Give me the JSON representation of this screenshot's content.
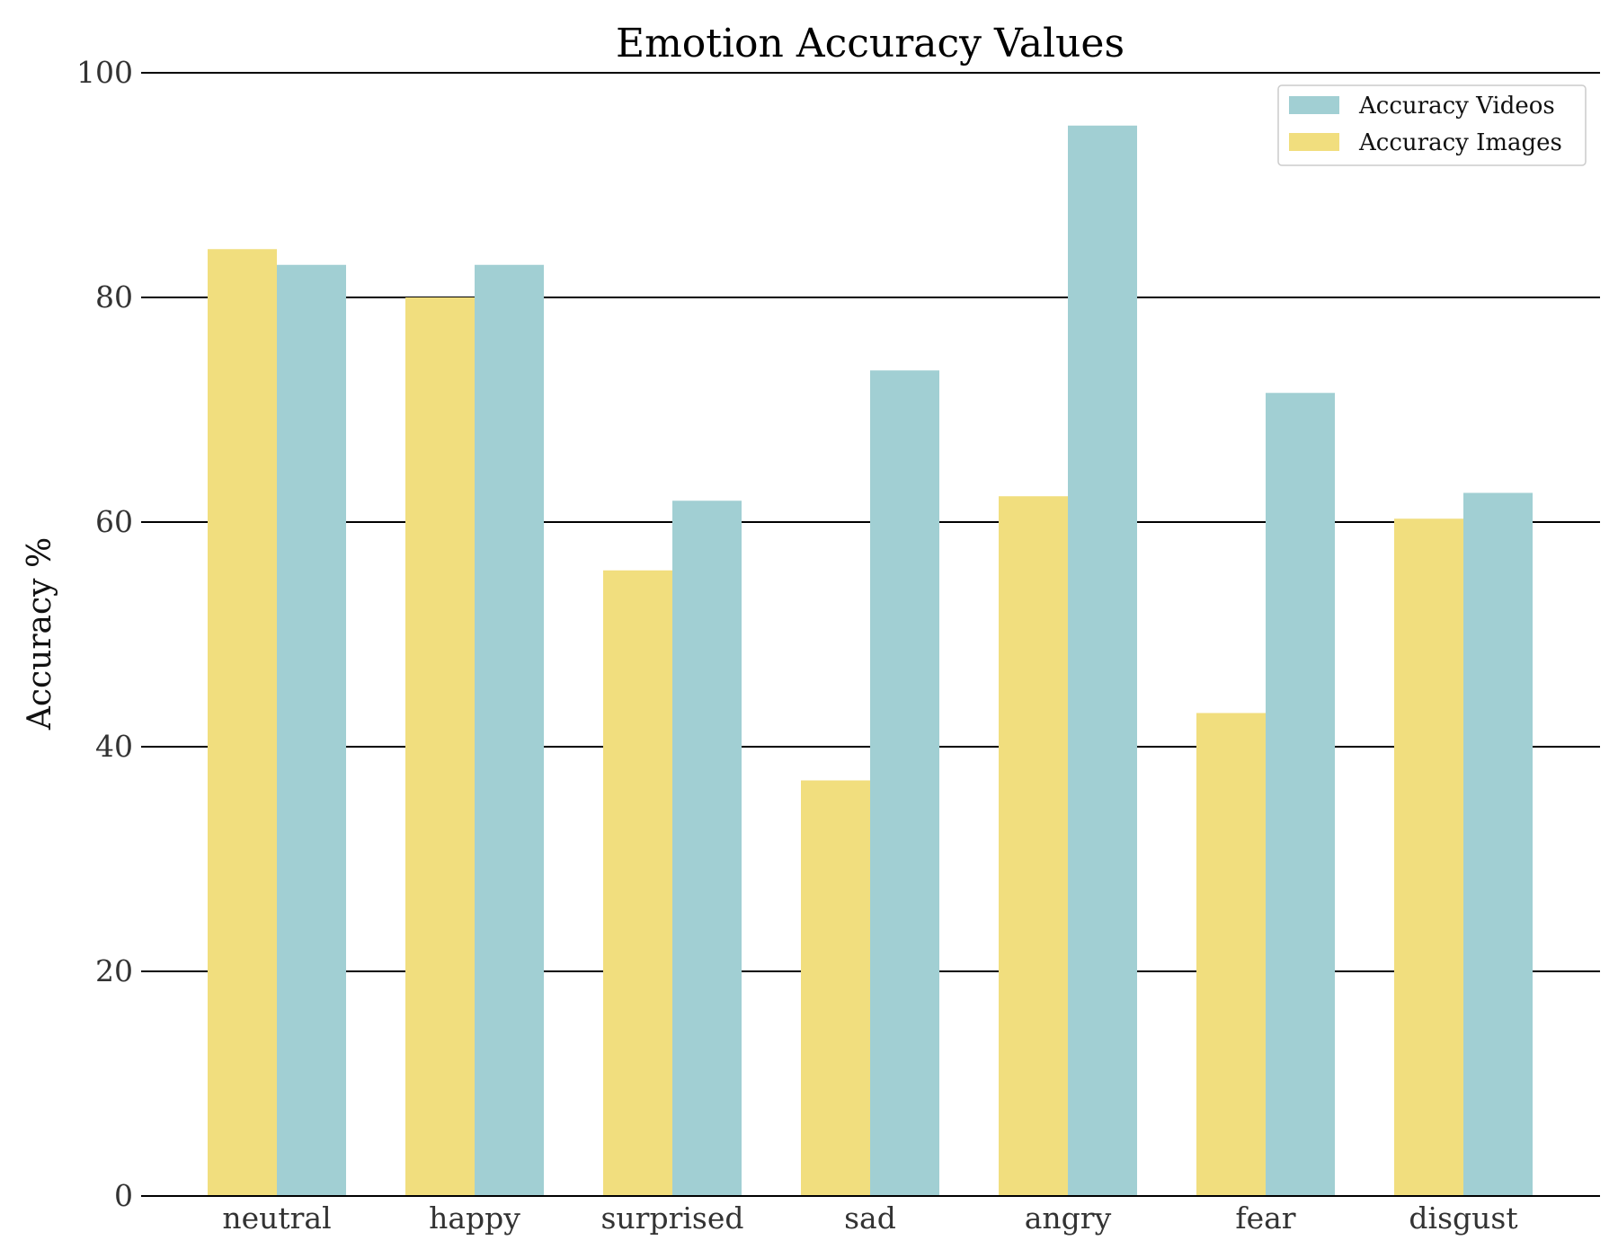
{
  "chart_data": {
    "type": "bar",
    "title": "Emotion Accuracy Values",
    "xlabel": "",
    "ylabel": "Accuracy %",
    "ylim": [
      0,
      100
    ],
    "yticks": [
      0,
      20,
      40,
      60,
      80,
      100
    ],
    "grid": "horizontal",
    "legend_position": "top-right",
    "categories": [
      "neutral",
      "happy",
      "surprised",
      "sad",
      "angry",
      "fear",
      "disgust"
    ],
    "series": [
      {
        "name": "Accuracy Images",
        "color": "#f1de7e",
        "values": [
          84.3,
          80.0,
          55.7,
          37.0,
          62.3,
          43.0,
          60.3
        ]
      },
      {
        "name": "Accuracy Videos",
        "color": "#a1cfd3",
        "values": [
          82.9,
          82.9,
          61.9,
          73.5,
          95.3,
          71.5,
          62.6
        ]
      }
    ],
    "legend_order": [
      "Accuracy Videos",
      "Accuracy Images"
    ]
  }
}
